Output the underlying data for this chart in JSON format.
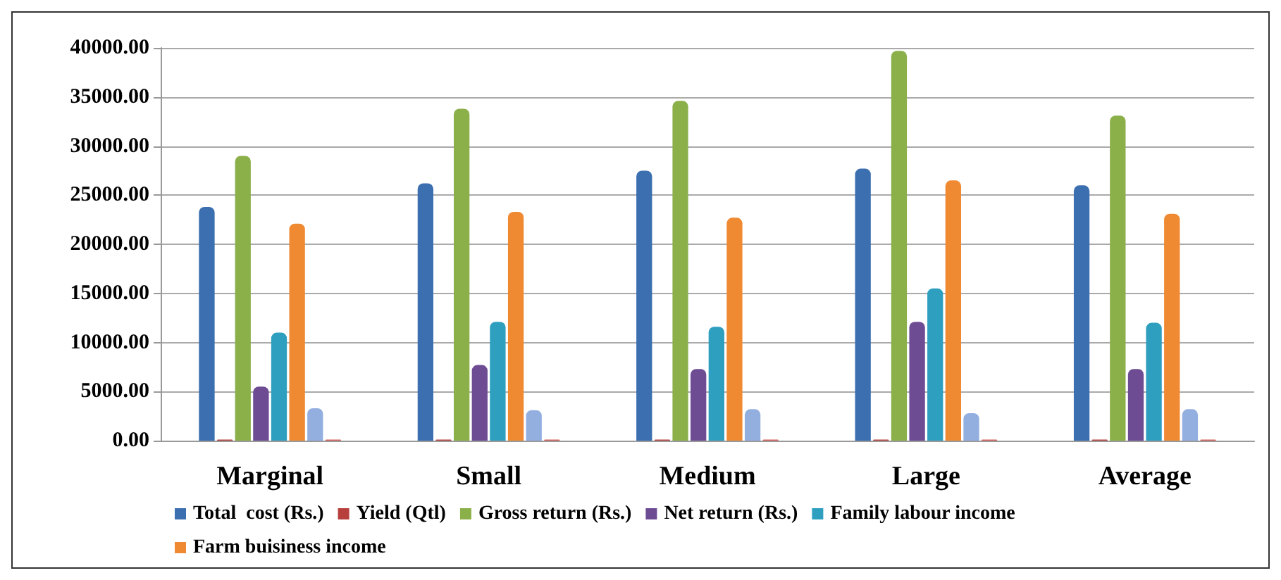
{
  "chart_data": {
    "type": "bar",
    "categories": [
      "Marginal",
      "Small",
      "Medium",
      "Large",
      "Average"
    ],
    "series": [
      {
        "name": "Total  cost (Rs.)",
        "color": "#3b6fb0",
        "values": [
          23800,
          26200,
          27500,
          27700,
          26000
        ]
      },
      {
        "name": "Yield (Qtl)",
        "color": "#b8403c",
        "values": [
          100,
          100,
          100,
          100,
          100
        ]
      },
      {
        "name": "Gross return (Rs.)",
        "color": "#8bb04a",
        "values": [
          29000,
          33800,
          34600,
          39700,
          33100
        ]
      },
      {
        "name": "Net return (Rs.)",
        "color": "#6d4c94",
        "values": [
          5500,
          7700,
          7300,
          12100,
          7300
        ]
      },
      {
        "name": "Family labour income",
        "color": "#2f9fbf",
        "values": [
          11000,
          12100,
          11600,
          15500,
          12000
        ]
      },
      {
        "name": "Farm buisiness income",
        "color": "#ef8a32",
        "values": [
          22100,
          23300,
          22700,
          26500,
          23100
        ]
      },
      {
        "color": "#93afe0",
        "values": [
          3300,
          3100,
          3200,
          2800,
          3200
        ]
      },
      {
        "color": "#d9605c",
        "values": [
          100,
          100,
          100,
          100,
          100
        ]
      }
    ],
    "ylim": [
      0,
      40000
    ],
    "yticks": [
      {
        "value": 0,
        "label": "0.00"
      },
      {
        "value": 5000,
        "label": "5000.00"
      },
      {
        "value": 10000,
        "label": "10000.00"
      },
      {
        "value": 15000,
        "label": "15000.00"
      },
      {
        "value": 20000,
        "label": "20000.00"
      },
      {
        "value": 25000,
        "label": "25000.00"
      },
      {
        "value": 30000,
        "label": "30000.00"
      },
      {
        "value": 35000,
        "label": "35000.00"
      },
      {
        "value": 40000,
        "label": "40000.00"
      }
    ],
    "grid": true,
    "legend": "bottom"
  }
}
